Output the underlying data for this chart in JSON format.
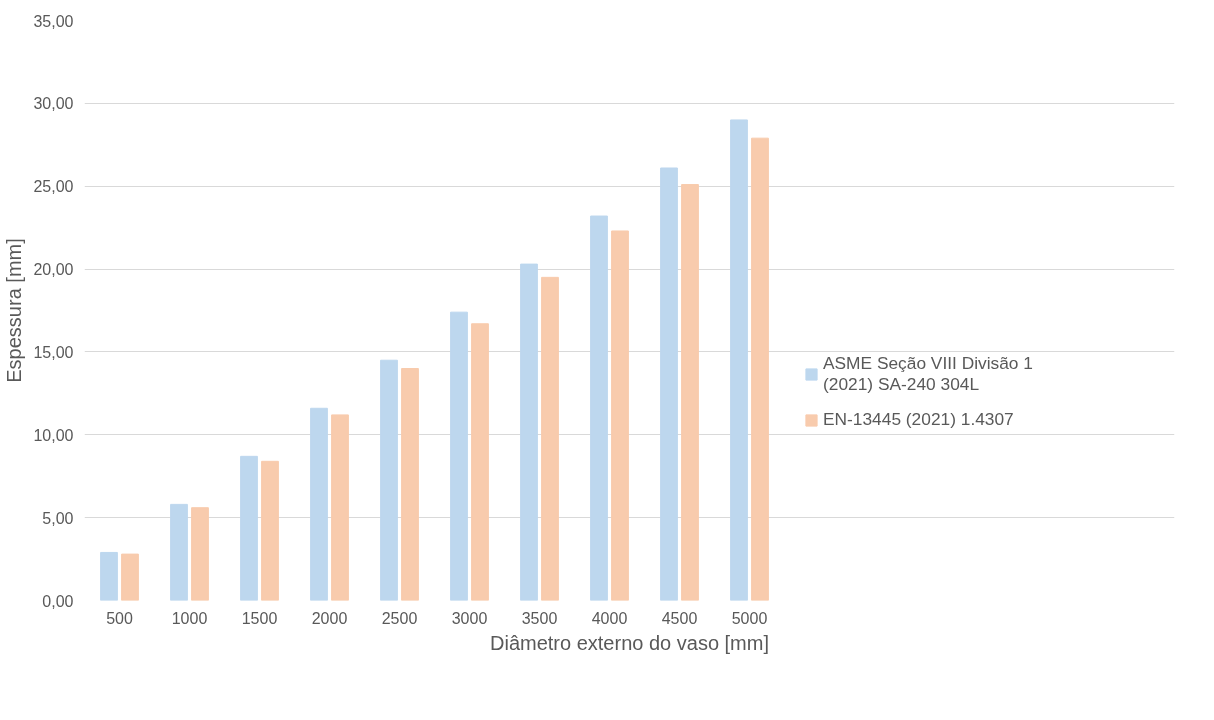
{
  "chart_data": {
    "type": "bar",
    "xlabel": "Diâmetro externo do vaso [mm]",
    "ylabel": "Espessura [mm]",
    "categories": [
      "500",
      "1000",
      "1500",
      "2000",
      "2500",
      "3000",
      "3500",
      "4000",
      "4500",
      "5000"
    ],
    "series": [
      {
        "name": "ASME Seção VIII Divisão 1 (2021) SA-240 304L",
        "color": "#bdd7ee",
        "values": [
          2.9,
          5.8,
          8.7,
          11.6,
          14.5,
          17.4,
          20.3,
          23.2,
          26.1,
          29.0
        ]
      },
      {
        "name": "EN-13445 (2021) 1.4307",
        "color": "#f8cbad",
        "values": [
          2.8,
          5.6,
          8.4,
          11.2,
          14.0,
          16.7,
          19.5,
          22.3,
          25.1,
          27.9
        ]
      }
    ],
    "ylim": [
      0,
      35
    ],
    "yticks": [
      {
        "value": 0,
        "label": "0,00"
      },
      {
        "value": 5,
        "label": "5,00"
      },
      {
        "value": 10,
        "label": "10,00"
      },
      {
        "value": 15,
        "label": "15,00"
      },
      {
        "value": 20,
        "label": "20,00"
      },
      {
        "value": 25,
        "label": "25,00"
      },
      {
        "value": 30,
        "label": "30,00"
      },
      {
        "value": 35,
        "label": "35,00"
      }
    ],
    "grid": "y",
    "legend": "right"
  }
}
